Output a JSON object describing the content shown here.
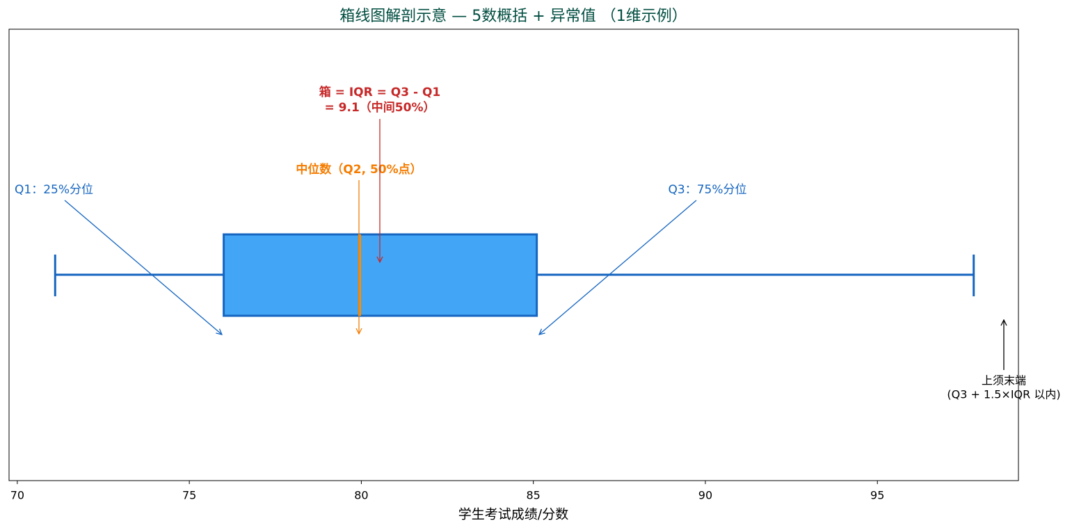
{
  "chart_data": {
    "type": "box",
    "title": "箱线图解剖示意 — 5数概括 + 异常值 （1维示例）",
    "x_label": "学生考试成绩/分数",
    "xlim": [
      69.76,
      99.1
    ],
    "xticks": [
      70,
      75,
      80,
      85,
      90,
      95
    ],
    "stats": {
      "whislo": 71.1,
      "q1": 76.0,
      "med": 79.95,
      "q3": 85.1,
      "whishi": 97.8
    },
    "box_color": "#42a5f5",
    "edge_color": "#1565c0",
    "median_color": "#ff8f00",
    "annotations": {
      "q1": "Q1：25%分位",
      "q3": "Q3：75%分位",
      "median": "中位数（Q2, 50%点）",
      "iqr": [
        "箱 = IQR = Q3 - Q1",
        "= 9.1（中间50%）"
      ],
      "whisker": [
        "上须末端",
        "(Q3 + 1.5×IQR 以内)"
      ]
    }
  }
}
